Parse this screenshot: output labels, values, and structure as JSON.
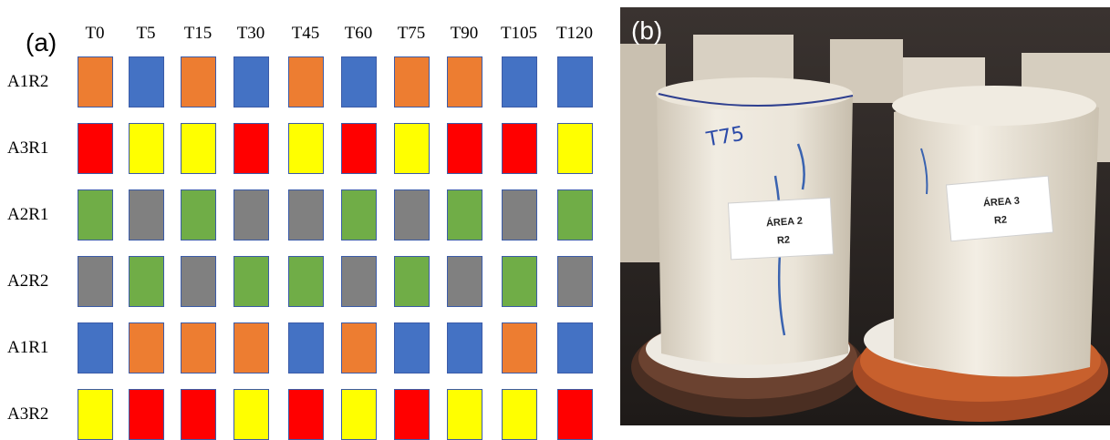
{
  "panel_a": {
    "label": "(a)",
    "columns": [
      "T0",
      "T5",
      "T15",
      "T30",
      "T45",
      "T60",
      "T75",
      "T90",
      "T105",
      "T120"
    ],
    "rows": [
      "A1R2",
      "A3R1",
      "A2R1",
      "A2R2",
      "A1R1",
      "A3R2"
    ],
    "palette": {
      "orange": "#ed7d31",
      "blue": "#4472c4",
      "red": "#ff0000",
      "yellow": "#ffff00",
      "green": "#70ad47",
      "gray": "#808080"
    },
    "grid": [
      [
        "orange",
        "blue",
        "orange",
        "blue",
        "orange",
        "blue",
        "orange",
        "orange",
        "blue",
        "blue"
      ],
      [
        "red",
        "yellow",
        "yellow",
        "red",
        "yellow",
        "red",
        "yellow",
        "red",
        "red",
        "yellow"
      ],
      [
        "green",
        "gray",
        "green",
        "gray",
        "gray",
        "green",
        "gray",
        "green",
        "gray",
        "green"
      ],
      [
        "gray",
        "green",
        "gray",
        "green",
        "green",
        "gray",
        "green",
        "gray",
        "green",
        "gray"
      ],
      [
        "blue",
        "orange",
        "orange",
        "orange",
        "blue",
        "orange",
        "blue",
        "blue",
        "orange",
        "blue"
      ],
      [
        "yellow",
        "red",
        "red",
        "yellow",
        "red",
        "yellow",
        "red",
        "yellow",
        "yellow",
        "red"
      ]
    ]
  },
  "panel_b": {
    "label": "(b)",
    "marker_text": "T75",
    "tag_left_line1": "ÁREA 2",
    "tag_left_line2": "R2",
    "tag_right_line1": "ÁREA 3",
    "tag_right_line2": "R2"
  }
}
